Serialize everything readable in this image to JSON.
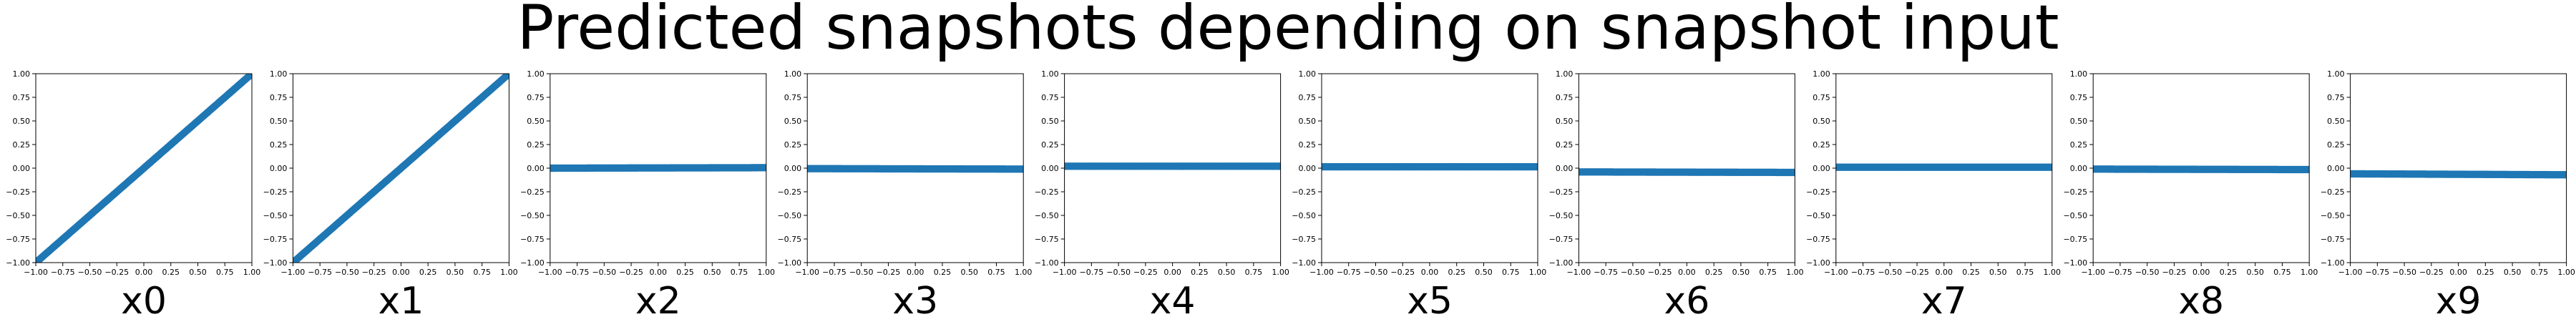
{
  "chart_data": {
    "type": "scatter",
    "title": "Predicted snapshots depending on snapshot input",
    "marker_color": "#1f77b4",
    "grid": false,
    "x_ticks": [
      "−1.00",
      "−0.75",
      "−0.50",
      "−0.25",
      "0.00",
      "0.25",
      "0.50",
      "0.75",
      "1.00"
    ],
    "y_ticks": [
      "−1.00",
      "−0.75",
      "−0.50",
      "−0.25",
      "0.00",
      "0.25",
      "0.50",
      "0.75",
      "1.00"
    ],
    "panels": [
      {
        "xlabel": "x0",
        "xlim": [
          -1,
          1
        ],
        "ylim": [
          -1,
          1
        ],
        "y_start": -1.0,
        "y_end": 1.0
      },
      {
        "xlabel": "x1",
        "xlim": [
          -1,
          1
        ],
        "ylim": [
          -1,
          1
        ],
        "y_start": -1.0,
        "y_end": 1.0
      },
      {
        "xlabel": "x2",
        "xlim": [
          -1,
          1
        ],
        "ylim": [
          -1,
          1
        ],
        "y_start": 0.0,
        "y_end": 0.005
      },
      {
        "xlabel": "x3",
        "xlim": [
          -1,
          1
        ],
        "ylim": [
          -1,
          1
        ],
        "y_start": -0.005,
        "y_end": -0.01
      },
      {
        "xlabel": "x4",
        "xlim": [
          -1,
          1
        ],
        "ylim": [
          -1,
          1
        ],
        "y_start": 0.02,
        "y_end": 0.02
      },
      {
        "xlabel": "x5",
        "xlim": [
          -1,
          1
        ],
        "ylim": [
          -1,
          1
        ],
        "y_start": 0.015,
        "y_end": 0.015
      },
      {
        "xlabel": "x6",
        "xlim": [
          -1,
          1
        ],
        "ylim": [
          -1,
          1
        ],
        "y_start": -0.04,
        "y_end": -0.045
      },
      {
        "xlabel": "x7",
        "xlim": [
          -1,
          1
        ],
        "ylim": [
          -1,
          1
        ],
        "y_start": 0.01,
        "y_end": 0.01
      },
      {
        "xlabel": "x8",
        "xlim": [
          -1,
          1
        ],
        "ylim": [
          -1,
          1
        ],
        "y_start": -0.01,
        "y_end": -0.015
      },
      {
        "xlabel": "x9",
        "xlim": [
          -1,
          1
        ],
        "ylim": [
          -1,
          1
        ],
        "y_start": -0.06,
        "y_end": -0.07
      }
    ]
  }
}
